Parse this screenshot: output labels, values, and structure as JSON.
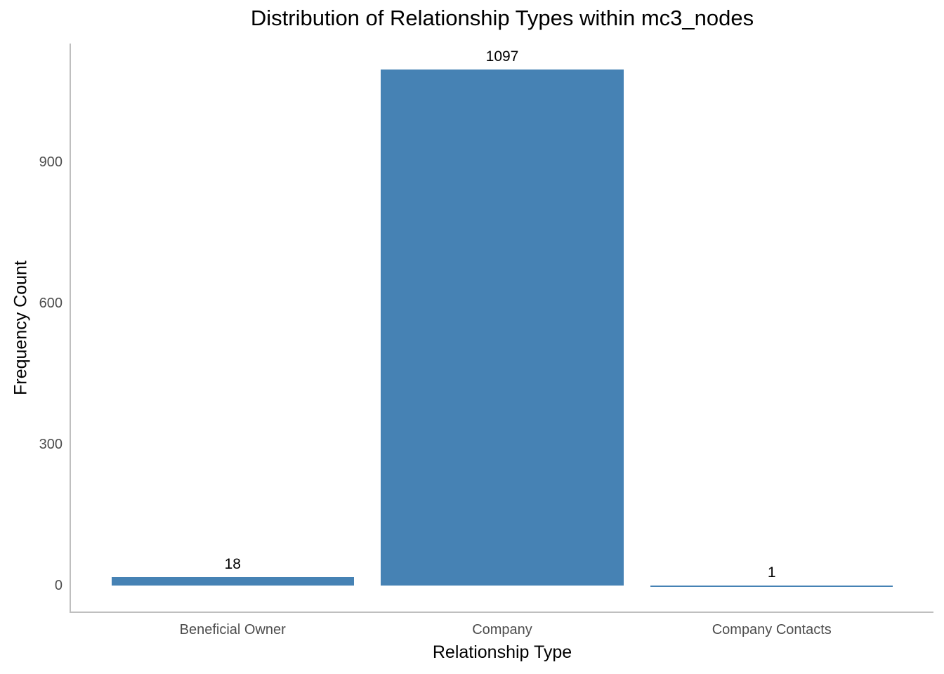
{
  "chart_data": {
    "type": "bar",
    "title": "Distribution of Relationship Types within mc3_nodes",
    "xlabel": "Relationship Type",
    "ylabel": "Frequency Count",
    "categories": [
      "Beneficial Owner",
      "Company",
      "Company Contacts"
    ],
    "values": [
      18,
      1097,
      1
    ],
    "yticks": [
      0,
      300,
      600,
      900
    ],
    "ylim": [
      -54.85,
      1151.85
    ],
    "bar_color": "#4682B4",
    "axis_color": "#BFBFBF",
    "tick_label_color": "#4D4D4D",
    "bar_width_fraction": 0.9,
    "grid": false,
    "legend": null
  }
}
